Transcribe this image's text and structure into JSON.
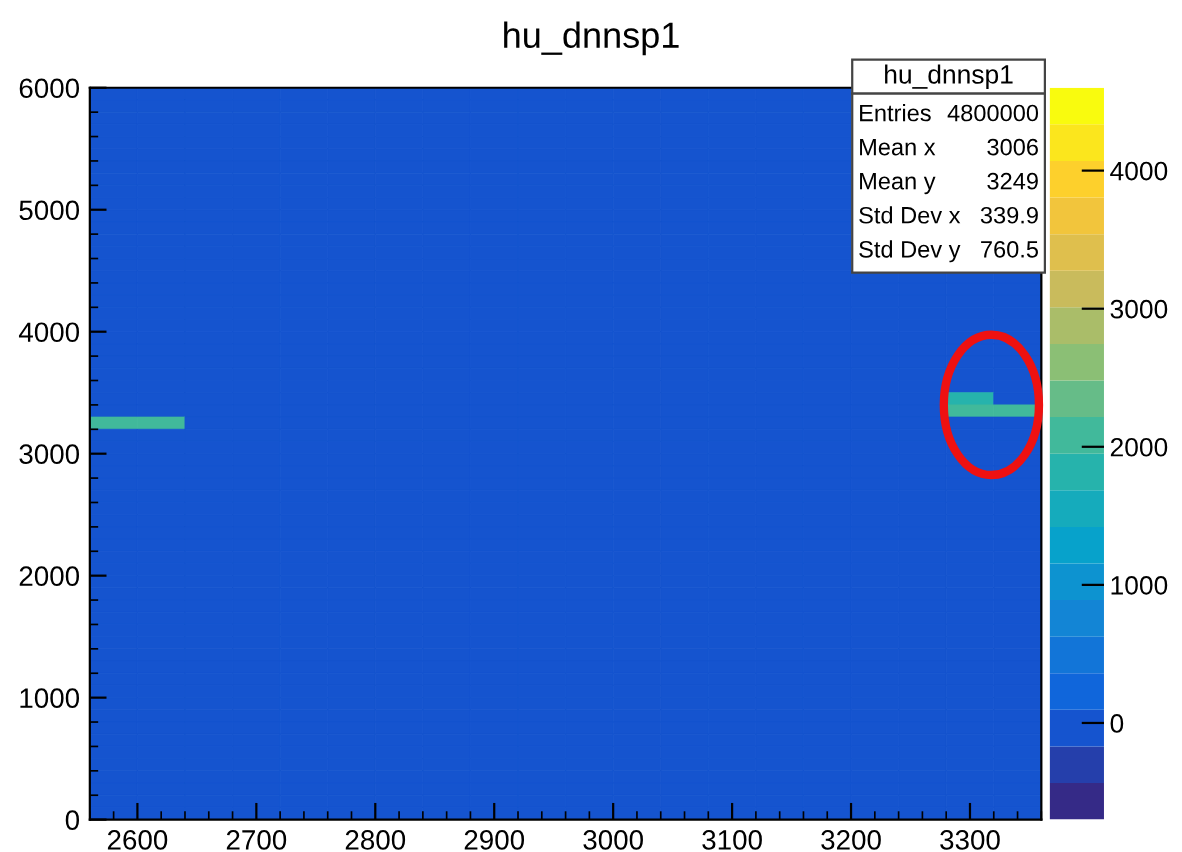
{
  "chart_data": {
    "type": "heatmap",
    "title": "hu_dnnsp1",
    "x": [
      2580,
      2620,
      2660,
      2700,
      2740,
      2780,
      2820,
      2860,
      2900,
      2940,
      2980,
      3020,
      3060,
      3100,
      3140,
      3180,
      3220,
      3260,
      3300,
      3340
    ],
    "y": [
      5950,
      5850,
      5750,
      5650,
      5550,
      5450,
      5350,
      5250,
      5150,
      5050,
      4950,
      4850,
      4750,
      4650,
      4550,
      4450,
      4350,
      4250,
      4150,
      4050,
      3950,
      3850,
      3750,
      3650,
      3550,
      3450,
      3350,
      3250,
      3150,
      3050,
      2950,
      2850,
      2750,
      2650,
      2550,
      2450,
      2350,
      2250,
      2150,
      2050,
      1950,
      1850,
      1750,
      1650,
      1550,
      1450,
      1350,
      1250,
      1150,
      1050,
      950,
      850,
      750,
      650,
      550,
      450,
      350,
      250,
      150,
      50
    ],
    "xlim": [
      2560,
      3360
    ],
    "xticks": [
      2600,
      2700,
      2800,
      2900,
      3000,
      3100,
      3200,
      3300
    ],
    "ylim": [
      0,
      6000
    ],
    "yticks": [
      0,
      1000,
      2000,
      3000,
      4000,
      5000,
      6000
    ],
    "clim": [
      -700,
      4600
    ],
    "cticks": [
      0,
      1000,
      2000,
      3000,
      4000
    ],
    "cells": [
      [
        0,
        0,
        0,
        0,
        0,
        0,
        0,
        0,
        0,
        0,
        0,
        0,
        0,
        0,
        0,
        0,
        null,
        null,
        null,
        null
      ],
      [
        0,
        0,
        0,
        0,
        0,
        0,
        0,
        0,
        0,
        0,
        0,
        0,
        0,
        0,
        0,
        0,
        null,
        null,
        null,
        null
      ],
      [
        0,
        0,
        0,
        0,
        0,
        0,
        0,
        0,
        0,
        0,
        0,
        0,
        0,
        0,
        0,
        0,
        null,
        null,
        null,
        null
      ],
      [
        0,
        0,
        0,
        0,
        0,
        0,
        0,
        0,
        0,
        0,
        0,
        0,
        0,
        0,
        0,
        0,
        null,
        null,
        null,
        null
      ],
      [
        0,
        0,
        0,
        0,
        0,
        0,
        0,
        0,
        0,
        0,
        0,
        0,
        0,
        0,
        0,
        0,
        null,
        null,
        null,
        null
      ],
      [
        0,
        0,
        0,
        0,
        0,
        0,
        0,
        0,
        0,
        0,
        0,
        0,
        0,
        0,
        0,
        0,
        null,
        null,
        null,
        null
      ],
      [
        0,
        0,
        0,
        0,
        0,
        0,
        0,
        0,
        0,
        0,
        0,
        0,
        0,
        0,
        0,
        0,
        null,
        null,
        null,
        null
      ],
      [
        0,
        0,
        0,
        0,
        0,
        0,
        0,
        0,
        0,
        0,
        0,
        0,
        0,
        0,
        0,
        0,
        null,
        null,
        null,
        null
      ],
      [
        0,
        0,
        0,
        0,
        0,
        0,
        0,
        0,
        0,
        0,
        0,
        0,
        0,
        0,
        0,
        0,
        null,
        null,
        null,
        null
      ],
      [
        0,
        0,
        0,
        0,
        0,
        0,
        0,
        0,
        0,
        0,
        0,
        0,
        0,
        0,
        0,
        0,
        null,
        null,
        null,
        null
      ],
      [
        0,
        0,
        0,
        0,
        0,
        0,
        0,
        0,
        0,
        0,
        0,
        0,
        0,
        0,
        0,
        0,
        null,
        null,
        null,
        null
      ],
      [
        0,
        0,
        0,
        0,
        0,
        0,
        0,
        0,
        0,
        0,
        0,
        0,
        0,
        0,
        0,
        0,
        null,
        null,
        null,
        null
      ],
      [
        0,
        0,
        0,
        0,
        0,
        0,
        0,
        0,
        0,
        0,
        0,
        0,
        0,
        0,
        0,
        0,
        null,
        null,
        null,
        null
      ],
      [
        0,
        0,
        0,
        0,
        0,
        0,
        0,
        0,
        0,
        0,
        0,
        0,
        0,
        0,
        0,
        0,
        null,
        null,
        null,
        null
      ],
      [
        0,
        0,
        0,
        0,
        0,
        0,
        0,
        0,
        0,
        0,
        0,
        0,
        0,
        0,
        0,
        0,
        null,
        null,
        null,
        null
      ],
      [
        0,
        0,
        0,
        0,
        0,
        0,
        0,
        0,
        0,
        0,
        0,
        0,
        0,
        0,
        0,
        0,
        0,
        0,
        0,
        0
      ],
      [
        0,
        0,
        0,
        0,
        0,
        0,
        0,
        0,
        0,
        0,
        0,
        0,
        0,
        0,
        0,
        0,
        0,
        0,
        0,
        0
      ],
      [
        0,
        0,
        0,
        0,
        0,
        0,
        0,
        0,
        0,
        0,
        0,
        0,
        0,
        0,
        0,
        0,
        0,
        0,
        0,
        0
      ],
      [
        0,
        0,
        0,
        0,
        0,
        0,
        0,
        0,
        0,
        0,
        0,
        0,
        0,
        0,
        0,
        0,
        0,
        0,
        0,
        0
      ],
      [
        0,
        0,
        0,
        0,
        0,
        0,
        0,
        0,
        0,
        0,
        0,
        0,
        0,
        0,
        0,
        0,
        0,
        0,
        0,
        0
      ],
      [
        0,
        0,
        0,
        0,
        0,
        0,
        0,
        0,
        0,
        0,
        0,
        0,
        0,
        0,
        0,
        0,
        0,
        0,
        0,
        0
      ],
      [
        0,
        0,
        0,
        0,
        0,
        0,
        0,
        0,
        0,
        0,
        0,
        0,
        0,
        0,
        0,
        0,
        0,
        0,
        0,
        0
      ],
      [
        0,
        0,
        0,
        0,
        0,
        0,
        0,
        0,
        0,
        0,
        0,
        0,
        0,
        0,
        0,
        0,
        0,
        0,
        0,
        0
      ],
      [
        0,
        0,
        0,
        0,
        0,
        0,
        0,
        0,
        0,
        0,
        0,
        0,
        0,
        0,
        0,
        0,
        0,
        0,
        0,
        0
      ],
      [
        0,
        0,
        0,
        0,
        0,
        0,
        0,
        0,
        0,
        0,
        0,
        0,
        0,
        0,
        0,
        0,
        0,
        0,
        0,
        0
      ],
      [
        0,
        0,
        0,
        0,
        0,
        0,
        0,
        0,
        0,
        0,
        0,
        0,
        0,
        0,
        0,
        0,
        0,
        0,
        1800,
        0
      ],
      [
        0,
        0,
        0,
        0,
        0,
        0,
        0,
        0,
        0,
        0,
        0,
        0,
        0,
        0,
        0,
        0,
        0,
        0,
        2000,
        2000
      ],
      [
        2000,
        2000,
        0,
        0,
        0,
        0,
        0,
        0,
        0,
        0,
        0,
        0,
        0,
        0,
        0,
        0,
        0,
        0,
        0,
        0
      ],
      [
        0,
        0,
        0,
        0,
        0,
        0,
        0,
        0,
        0,
        0,
        0,
        0,
        0,
        0,
        0,
        0,
        0,
        0,
        0,
        0
      ],
      [
        0,
        0,
        0,
        0,
        0,
        0,
        0,
        0,
        0,
        0,
        0,
        0,
        0,
        0,
        0,
        0,
        0,
        0,
        0,
        0
      ],
      [
        0,
        0,
        0,
        0,
        0,
        0,
        0,
        0,
        0,
        0,
        0,
        0,
        0,
        0,
        0,
        0,
        0,
        0,
        0,
        0
      ],
      [
        0,
        0,
        0,
        0,
        0,
        0,
        0,
        0,
        0,
        0,
        0,
        0,
        0,
        0,
        0,
        0,
        0,
        0,
        0,
        0
      ],
      [
        0,
        0,
        0,
        0,
        0,
        0,
        0,
        0,
        0,
        0,
        0,
        0,
        0,
        0,
        0,
        0,
        0,
        0,
        0,
        0
      ],
      [
        0,
        0,
        0,
        0,
        0,
        0,
        0,
        0,
        0,
        0,
        0,
        0,
        0,
        0,
        0,
        0,
        0,
        0,
        0,
        0
      ],
      [
        0,
        0,
        0,
        0,
        0,
        0,
        0,
        0,
        0,
        0,
        0,
        0,
        0,
        0,
        0,
        0,
        0,
        0,
        0,
        0
      ],
      [
        0,
        0,
        0,
        0,
        0,
        0,
        0,
        0,
        0,
        0,
        0,
        0,
        0,
        0,
        0,
        0,
        0,
        0,
        0,
        0
      ],
      [
        0,
        0,
        0,
        0,
        0,
        0,
        0,
        0,
        0,
        0,
        0,
        0,
        0,
        0,
        0,
        0,
        0,
        0,
        0,
        0
      ],
      [
        0,
        0,
        0,
        0,
        0,
        0,
        0,
        0,
        0,
        0,
        0,
        0,
        0,
        0,
        0,
        0,
        0,
        0,
        0,
        0
      ],
      [
        0,
        0,
        0,
        0,
        0,
        0,
        0,
        0,
        0,
        0,
        0,
        0,
        0,
        0,
        0,
        0,
        0,
        0,
        0,
        0
      ],
      [
        0,
        0,
        0,
        0,
        0,
        0,
        0,
        0,
        0,
        0,
        0,
        0,
        0,
        0,
        0,
        0,
        0,
        0,
        0,
        0
      ],
      [
        0,
        0,
        0,
        0,
        0,
        0,
        0,
        0,
        0,
        0,
        0,
        0,
        0,
        0,
        0,
        0,
        0,
        0,
        0,
        0
      ],
      [
        0,
        0,
        0,
        0,
        0,
        0,
        0,
        0,
        0,
        0,
        0,
        0,
        0,
        0,
        0,
        0,
        0,
        0,
        0,
        0
      ],
      [
        0,
        0,
        0,
        0,
        0,
        0,
        0,
        0,
        0,
        0,
        0,
        0,
        0,
        0,
        0,
        0,
        0,
        0,
        0,
        0
      ],
      [
        0,
        0,
        0,
        0,
        0,
        0,
        0,
        0,
        0,
        0,
        0,
        0,
        0,
        0,
        0,
        0,
        0,
        0,
        0,
        0
      ],
      [
        0,
        0,
        0,
        0,
        0,
        0,
        0,
        0,
        0,
        0,
        0,
        0,
        0,
        0,
        0,
        0,
        0,
        0,
        0,
        0
      ],
      [
        0,
        0,
        0,
        0,
        0,
        0,
        0,
        0,
        0,
        0,
        0,
        0,
        0,
        0,
        0,
        0,
        0,
        0,
        0,
        0
      ],
      [
        0,
        0,
        0,
        0,
        0,
        0,
        0,
        0,
        0,
        0,
        0,
        0,
        0,
        0,
        0,
        0,
        0,
        0,
        0,
        0
      ],
      [
        0,
        0,
        0,
        0,
        0,
        0,
        0,
        0,
        0,
        0,
        0,
        0,
        0,
        0,
        0,
        0,
        0,
        0,
        0,
        0
      ],
      [
        0,
        0,
        0,
        0,
        0,
        0,
        0,
        0,
        0,
        0,
        0,
        0,
        0,
        0,
        0,
        0,
        0,
        0,
        0,
        0
      ],
      [
        0,
        0,
        0,
        0,
        0,
        0,
        0,
        0,
        0,
        0,
        0,
        0,
        0,
        0,
        0,
        0,
        0,
        0,
        0,
        0
      ],
      [
        0,
        0,
        0,
        0,
        0,
        0,
        0,
        0,
        0,
        0,
        0,
        0,
        0,
        0,
        0,
        0,
        0,
        0,
        0,
        0
      ],
      [
        0,
        0,
        0,
        0,
        0,
        0,
        0,
        0,
        0,
        0,
        0,
        0,
        0,
        0,
        0,
        0,
        0,
        0,
        0,
        0
      ],
      [
        0,
        0,
        0,
        0,
        0,
        0,
        0,
        0,
        0,
        0,
        0,
        0,
        0,
        0,
        0,
        0,
        0,
        0,
        0,
        0
      ],
      [
        0,
        0,
        0,
        0,
        0,
        0,
        0,
        0,
        0,
        0,
        0,
        0,
        0,
        0,
        0,
        0,
        0,
        0,
        0,
        0
      ],
      [
        0,
        0,
        0,
        0,
        0,
        0,
        0,
        0,
        0,
        0,
        0,
        0,
        0,
        0,
        0,
        0,
        0,
        0,
        0,
        0
      ],
      [
        0,
        0,
        0,
        0,
        0,
        0,
        0,
        0,
        0,
        0,
        0,
        0,
        0,
        0,
        0,
        0,
        0,
        0,
        0,
        0
      ],
      [
        0,
        0,
        0,
        0,
        0,
        0,
        0,
        0,
        0,
        0,
        0,
        0,
        0,
        0,
        0,
        0,
        0,
        0,
        0,
        0
      ],
      [
        0,
        0,
        0,
        0,
        0,
        0,
        0,
        0,
        0,
        0,
        0,
        0,
        0,
        0,
        0,
        0,
        0,
        0,
        0,
        0
      ],
      [
        0,
        0,
        0,
        0,
        0,
        0,
        0,
        0,
        0,
        0,
        0,
        0,
        0,
        0,
        0,
        0,
        0,
        0,
        0,
        0
      ],
      [
        0,
        0,
        0,
        0,
        0,
        0,
        0,
        0,
        0,
        0,
        0,
        0,
        0,
        0,
        0,
        0,
        0,
        0,
        0,
        0
      ]
    ],
    "annotations": [
      "hu_dnnsp1",
      "Entries 4800000",
      "Mean x 3006",
      "Mean y 3249",
      "Std Dev x 339.9",
      "Std Dev y 760.5"
    ]
  }
}
